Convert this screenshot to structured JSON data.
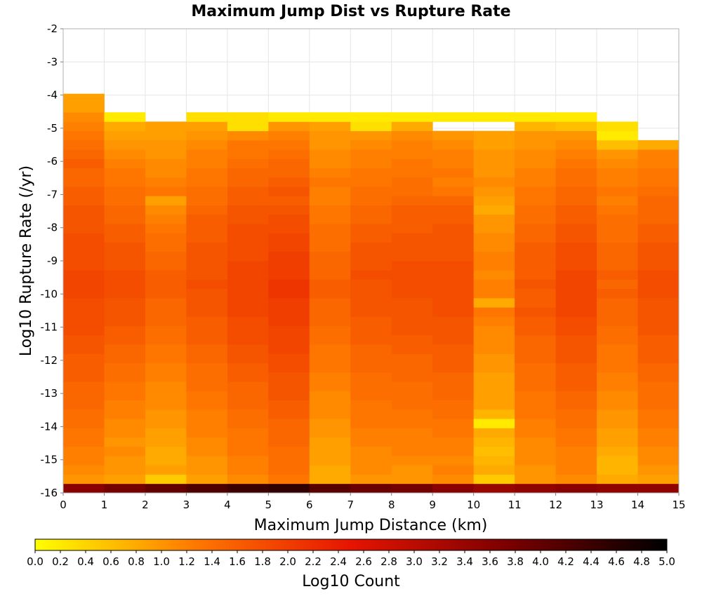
{
  "chart_data": {
    "type": "heatmap",
    "title": "Maximum Jump Dist vs Rupture Rate",
    "xlabel": "Maximum Jump Distance (km)",
    "ylabel": "Log10 Rupture Rate (/yr)",
    "xlim": [
      0,
      15
    ],
    "ylim": [
      -16,
      -2
    ],
    "x_ticks": [
      0,
      1,
      2,
      3,
      4,
      5,
      6,
      7,
      8,
      9,
      10,
      11,
      12,
      13,
      14,
      15
    ],
    "y_ticks": [
      -2,
      -3,
      -4,
      -5,
      -6,
      -7,
      -8,
      -9,
      -10,
      -11,
      -12,
      -13,
      -14,
      -15,
      -16
    ],
    "grid": true,
    "x_bin_width": 1,
    "y_bin_height": 0.28,
    "rows_note": "rows are listed from y=-16 upward; null = empty bin",
    "colorbar": {
      "label": "Log10 Count",
      "range": [
        0,
        5
      ],
      "ticks": [
        "0.0",
        "0.2",
        "0.4",
        "0.6",
        "0.8",
        "1.0",
        "1.2",
        "1.4",
        "1.6",
        "1.8",
        "2.0",
        "2.2",
        "2.4",
        "2.6",
        "2.8",
        "3.0",
        "3.2",
        "3.4",
        "3.6",
        "3.8",
        "4.0",
        "4.2",
        "4.4",
        "4.6",
        "4.8",
        "5.0"
      ],
      "placement": "bottom",
      "colors": [
        "#ffff00",
        "#ff7a00",
        "#e61400",
        "#7a0000",
        "#000000"
      ]
    },
    "values": [
      [
        3.6,
        3.8,
        4.0,
        4.2,
        4.4,
        4.5,
        4.1,
        3.9,
        3.8,
        3.6,
        3.4,
        3.5,
        3.6,
        3.5,
        3.5
      ],
      [
        1.0,
        0.9,
        0.5,
        0.9,
        1.1,
        1.3,
        0.8,
        1.0,
        1.0,
        1.1,
        0.5,
        1.0,
        1.1,
        0.8,
        0.9
      ],
      [
        1.1,
        1.0,
        0.9,
        1.0,
        1.2,
        1.4,
        0.8,
        1.1,
        1.0,
        1.2,
        0.8,
        1.0,
        1.2,
        0.7,
        1.0
      ],
      [
        1.2,
        1.0,
        0.8,
        1.0,
        1.2,
        1.4,
        0.9,
        1.1,
        1.1,
        1.1,
        0.7,
        1.1,
        1.2,
        0.7,
        1.1
      ],
      [
        1.2,
        1.1,
        0.8,
        1.1,
        1.3,
        1.4,
        0.9,
        1.1,
        1.2,
        1.2,
        0.6,
        1.1,
        1.2,
        0.8,
        1.1
      ],
      [
        1.3,
        1.0,
        0.9,
        1.1,
        1.3,
        1.5,
        0.9,
        1.2,
        1.2,
        1.2,
        0.7,
        1.1,
        1.3,
        0.9,
        1.2
      ],
      [
        1.3,
        1.1,
        0.9,
        1.2,
        1.3,
        1.5,
        1.0,
        1.2,
        1.2,
        1.3,
        0.8,
        1.2,
        1.3,
        0.9,
        1.2
      ],
      [
        1.4,
        1.1,
        1.0,
        1.2,
        1.4,
        1.5,
        1.0,
        1.3,
        1.3,
        1.3,
        0.2,
        1.2,
        1.4,
        1.0,
        1.3
      ],
      [
        1.4,
        1.2,
        1.0,
        1.2,
        1.4,
        1.6,
        1.1,
        1.3,
        1.3,
        1.4,
        0.7,
        1.3,
        1.4,
        1.0,
        1.3
      ],
      [
        1.5,
        1.2,
        1.1,
        1.3,
        1.5,
        1.6,
        1.1,
        1.3,
        1.4,
        1.4,
        0.9,
        1.3,
        1.5,
        1.1,
        1.4
      ],
      [
        1.5,
        1.3,
        1.1,
        1.3,
        1.5,
        1.7,
        1.1,
        1.4,
        1.4,
        1.5,
        0.9,
        1.3,
        1.5,
        1.1,
        1.4
      ],
      [
        1.5,
        1.3,
        1.1,
        1.4,
        1.5,
        1.7,
        1.2,
        1.4,
        1.4,
        1.5,
        0.9,
        1.4,
        1.6,
        1.2,
        1.4
      ],
      [
        1.6,
        1.4,
        1.2,
        1.4,
        1.6,
        1.7,
        1.2,
        1.4,
        1.5,
        1.5,
        0.9,
        1.4,
        1.6,
        1.2,
        1.5
      ],
      [
        1.6,
        1.4,
        1.2,
        1.4,
        1.6,
        1.8,
        1.3,
        1.5,
        1.5,
        1.6,
        1.0,
        1.4,
        1.6,
        1.3,
        1.5
      ],
      [
        1.6,
        1.5,
        1.3,
        1.5,
        1.7,
        1.8,
        1.3,
        1.5,
        1.5,
        1.6,
        1.0,
        1.5,
        1.7,
        1.3,
        1.6
      ],
      [
        1.7,
        1.5,
        1.3,
        1.5,
        1.7,
        1.9,
        1.3,
        1.5,
        1.6,
        1.6,
        1.1,
        1.5,
        1.7,
        1.3,
        1.6
      ],
      [
        1.7,
        1.6,
        1.4,
        1.6,
        1.8,
        1.9,
        1.4,
        1.6,
        1.6,
        1.7,
        1.1,
        1.5,
        1.7,
        1.4,
        1.6
      ],
      [
        1.8,
        1.6,
        1.4,
        1.6,
        1.8,
        1.9,
        1.4,
        1.6,
        1.7,
        1.7,
        1.1,
        1.6,
        1.8,
        1.4,
        1.7
      ],
      [
        1.8,
        1.7,
        1.5,
        1.6,
        1.8,
        2.0,
        1.5,
        1.6,
        1.7,
        1.7,
        1.2,
        1.6,
        1.8,
        1.5,
        1.7
      ],
      [
        1.8,
        1.7,
        1.5,
        1.7,
        1.9,
        2.0,
        1.5,
        1.7,
        1.7,
        1.8,
        1.3,
        1.7,
        1.9,
        1.5,
        1.7
      ],
      [
        1.8,
        1.7,
        1.5,
        1.7,
        1.9,
        2.0,
        1.5,
        1.7,
        1.7,
        1.8,
        0.8,
        1.6,
        1.9,
        1.5,
        1.7
      ],
      [
        1.9,
        1.8,
        1.6,
        1.7,
        1.9,
        2.1,
        1.6,
        1.7,
        1.8,
        1.8,
        1.2,
        1.6,
        1.9,
        1.6,
        1.8
      ],
      [
        1.9,
        1.8,
        1.6,
        1.8,
        1.9,
        2.1,
        1.6,
        1.7,
        1.8,
        1.8,
        1.2,
        1.7,
        1.9,
        1.5,
        1.8
      ],
      [
        1.9,
        1.8,
        1.6,
        1.7,
        1.9,
        2.0,
        1.5,
        1.8,
        1.8,
        1.8,
        1.1,
        1.6,
        1.9,
        1.6,
        1.8
      ],
      [
        1.8,
        1.7,
        1.5,
        1.7,
        1.9,
        2.0,
        1.5,
        1.7,
        1.8,
        1.8,
        1.2,
        1.6,
        1.8,
        1.5,
        1.7
      ],
      [
        1.8,
        1.7,
        1.5,
        1.7,
        1.8,
        2.0,
        1.5,
        1.7,
        1.7,
        1.7,
        1.2,
        1.6,
        1.8,
        1.5,
        1.7
      ],
      [
        1.8,
        1.7,
        1.4,
        1.7,
        1.8,
        1.9,
        1.4,
        1.7,
        1.7,
        1.7,
        1.1,
        1.6,
        1.8,
        1.5,
        1.7
      ],
      [
        1.8,
        1.6,
        1.4,
        1.6,
        1.8,
        1.9,
        1.4,
        1.6,
        1.7,
        1.7,
        1.1,
        1.5,
        1.7,
        1.4,
        1.6
      ],
      [
        1.7,
        1.6,
        1.3,
        1.6,
        1.8,
        1.8,
        1.4,
        1.6,
        1.6,
        1.7,
        1.0,
        1.5,
        1.7,
        1.4,
        1.6
      ],
      [
        1.7,
        1.5,
        1.2,
        1.6,
        1.7,
        1.8,
        1.3,
        1.5,
        1.6,
        1.6,
        1.0,
        1.4,
        1.6,
        1.4,
        1.5
      ],
      [
        1.7,
        1.5,
        1.1,
        1.5,
        1.7,
        1.7,
        1.3,
        1.5,
        1.6,
        1.6,
        0.8,
        1.4,
        1.6,
        1.3,
        1.5
      ],
      [
        1.6,
        1.4,
        0.9,
        1.4,
        1.6,
        1.6,
        1.2,
        1.4,
        1.5,
        1.5,
        0.9,
        1.3,
        1.5,
        1.2,
        1.5
      ],
      [
        1.6,
        1.4,
        1.3,
        1.4,
        1.6,
        1.7,
        1.2,
        1.4,
        1.4,
        1.3,
        1.0,
        1.3,
        1.5,
        1.3,
        1.4
      ],
      [
        1.5,
        1.3,
        1.2,
        1.3,
        1.5,
        1.6,
        1.3,
        1.3,
        1.4,
        1.2,
        1.1,
        1.2,
        1.4,
        1.2,
        1.3
      ],
      [
        1.5,
        1.3,
        1.1,
        1.3,
        1.5,
        1.5,
        1.2,
        1.3,
        1.3,
        1.3,
        1.0,
        1.2,
        1.4,
        1.2,
        1.3
      ],
      [
        1.6,
        1.2,
        1.1,
        1.2,
        1.4,
        1.5,
        1.1,
        1.2,
        1.3,
        1.2,
        1.0,
        1.1,
        1.3,
        1.1,
        1.2
      ],
      [
        1.5,
        1.1,
        1.0,
        1.2,
        1.3,
        1.4,
        1.1,
        1.2,
        1.2,
        1.2,
        1.0,
        1.1,
        1.2,
        1.0,
        1.2
      ],
      [
        1.4,
        1.0,
        1.0,
        1.1,
        1.3,
        1.3,
        1.0,
        1.1,
        1.2,
        1.1,
        0.9,
        1.0,
        1.1,
        0.6,
        0.8
      ],
      [
        1.3,
        0.9,
        0.9,
        1.0,
        1.1,
        1.2,
        1.0,
        1.0,
        1.1,
        1.0,
        0.9,
        1.0,
        1.0,
        0.2,
        null
      ],
      [
        1.2,
        0.8,
        0.9,
        0.9,
        0.3,
        1.0,
        0.9,
        0.3,
        0.8,
        null,
        null,
        0.7,
        0.6,
        0.3,
        null
      ],
      [
        1.1,
        0.2,
        null,
        0.3,
        0.3,
        0.2,
        0.2,
        0.2,
        0.2,
        0.2,
        0.2,
        0.2,
        0.2,
        null,
        null
      ],
      [
        0.9,
        null,
        null,
        null,
        null,
        null,
        null,
        null,
        null,
        null,
        null,
        null,
        null,
        null,
        null
      ],
      [
        0.9,
        null,
        null,
        null,
        null,
        null,
        null,
        null,
        null,
        null,
        null,
        null,
        null,
        null,
        null
      ]
    ]
  }
}
